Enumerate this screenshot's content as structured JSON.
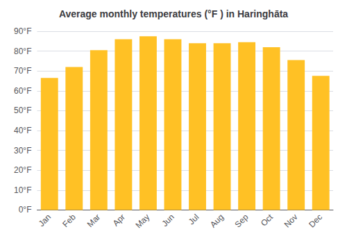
{
  "chart_data": {
    "type": "bar",
    "title": "Average monthly temperatures (°F ) in Haringhāta",
    "categories": [
      "Jan",
      "Feb",
      "Mar",
      "Apr",
      "May",
      "Jun",
      "Jul",
      "Aug",
      "Sep",
      "Oct",
      "Nov",
      "Dec"
    ],
    "values": [
      66.5,
      72.0,
      80.5,
      86.0,
      87.5,
      86.0,
      84.0,
      84.0,
      84.5,
      82.0,
      75.5,
      67.5
    ],
    "color": "#FFC125",
    "ylim": [
      0,
      90
    ],
    "yticks": [
      {
        "value": 0,
        "label": "0°F"
      },
      {
        "value": 10,
        "label": "10°F"
      },
      {
        "value": 20,
        "label": "20°F"
      },
      {
        "value": 30,
        "label": "30°F"
      },
      {
        "value": 40,
        "label": "40°F"
      },
      {
        "value": 50,
        "label": "50°F"
      },
      {
        "value": 60,
        "label": "60°F"
      },
      {
        "value": 70,
        "label": "70°F"
      },
      {
        "value": 80,
        "label": "80°F"
      },
      {
        "value": 90,
        "label": "90°F"
      }
    ],
    "grid": true
  }
}
